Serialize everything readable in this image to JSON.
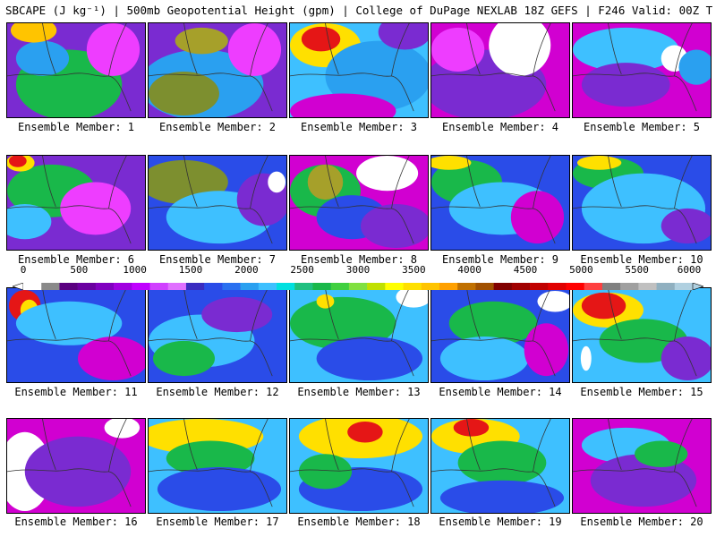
{
  "header": {
    "title": "SBCAPE (J kg⁻¹) | 500mb Geopotential Height (gpm) | College of DuPage NEXLAB 18Z GEFS | F246 Valid: 00Z TUE JUN 17 2025"
  },
  "members": [
    {
      "label": "Ensemble Member: 1",
      "base": "#7a2bd1",
      "blobs": [
        [
          "#19b84a",
          70,
          70,
          60,
          40
        ],
        [
          "#2aa0f0",
          40,
          40,
          30,
          20
        ],
        [
          "#ffc400",
          30,
          8,
          26,
          14
        ],
        [
          "#ee3dff",
          120,
          30,
          30,
          30
        ]
      ]
    },
    {
      "label": "Ensemble Member: 2",
      "base": "#7a2bd1",
      "blobs": [
        [
          "#2aa0f0",
          60,
          70,
          70,
          40
        ],
        [
          "#7d8f2f",
          40,
          80,
          40,
          25
        ],
        [
          "#a6a02a",
          60,
          20,
          30,
          15
        ],
        [
          "#ee3dff",
          120,
          30,
          30,
          30
        ]
      ]
    },
    {
      "label": "Ensemble Member: 3",
      "base": "#3ec0ff",
      "blobs": [
        [
          "#ffe000",
          40,
          25,
          40,
          25
        ],
        [
          "#e51616",
          35,
          18,
          22,
          14
        ],
        [
          "#2aa0f0",
          100,
          60,
          60,
          40
        ],
        [
          "#7a2bd1",
          130,
          10,
          30,
          20
        ],
        [
          "#d100d1",
          60,
          100,
          60,
          20
        ]
      ]
    },
    {
      "label": "Ensemble Member: 4",
      "base": "#d100d1",
      "blobs": [
        [
          "#7a2bd1",
          60,
          70,
          70,
          40
        ],
        [
          "#ffffff",
          100,
          25,
          35,
          35
        ],
        [
          "#ee3dff",
          30,
          30,
          30,
          25
        ]
      ]
    },
    {
      "label": "Ensemble Member: 5",
      "base": "#d100d1",
      "blobs": [
        [
          "#3ec0ff",
          60,
          30,
          60,
          25
        ],
        [
          "#ffffff",
          115,
          40,
          15,
          15
        ],
        [
          "#7a2bd1",
          60,
          70,
          50,
          25
        ],
        [
          "#2aa0f0",
          140,
          50,
          20,
          20
        ]
      ]
    },
    {
      "label": "Ensemble Member: 6",
      "base": "#7a2bd1",
      "blobs": [
        [
          "#19b84a",
          50,
          40,
          50,
          30
        ],
        [
          "#ffe000",
          15,
          8,
          16,
          10
        ],
        [
          "#e51616",
          12,
          6,
          10,
          7
        ],
        [
          "#3ec0ff",
          20,
          75,
          30,
          20
        ],
        [
          "#ee3dff",
          100,
          60,
          40,
          30
        ]
      ]
    },
    {
      "label": "Ensemble Member: 7",
      "base": "#2a4ce8",
      "blobs": [
        [
          "#7d8f2f",
          40,
          30,
          50,
          25
        ],
        [
          "#3ec0ff",
          80,
          70,
          60,
          30
        ],
        [
          "#7a2bd1",
          130,
          50,
          30,
          30
        ],
        [
          "#ffffff",
          145,
          30,
          10,
          12
        ]
      ]
    },
    {
      "label": "Ensemble Member: 8",
      "base": "#d100d1",
      "blobs": [
        [
          "#19b84a",
          40,
          40,
          40,
          30
        ],
        [
          "#a6a02a",
          40,
          30,
          20,
          20
        ],
        [
          "#ffffff",
          110,
          20,
          35,
          20
        ],
        [
          "#2a4ce8",
          70,
          70,
          40,
          25
        ],
        [
          "#7a2bd1",
          120,
          80,
          40,
          25
        ]
      ]
    },
    {
      "label": "Ensemble Member: 9",
      "base": "#2a4ce8",
      "blobs": [
        [
          "#19b84a",
          40,
          30,
          40,
          25
        ],
        [
          "#ffe000",
          20,
          8,
          25,
          8
        ],
        [
          "#3ec0ff",
          80,
          60,
          60,
          30
        ],
        [
          "#d100d1",
          120,
          70,
          30,
          30
        ]
      ]
    },
    {
      "label": "Ensemble Member: 10",
      "base": "#2a4ce8",
      "blobs": [
        [
          "#19b84a",
          40,
          20,
          40,
          18
        ],
        [
          "#ffe000",
          30,
          8,
          25,
          8
        ],
        [
          "#3ec0ff",
          80,
          60,
          70,
          40
        ],
        [
          "#7a2bd1",
          130,
          80,
          30,
          20
        ]
      ]
    },
    {
      "label": "Ensemble Member: 11",
      "base": "#2a4ce8",
      "blobs": [
        [
          "#e51616",
          20,
          20,
          18,
          18
        ],
        [
          "#ffe000",
          25,
          25,
          10,
          12
        ],
        [
          "#3ec0ff",
          70,
          40,
          60,
          25
        ],
        [
          "#d100d1",
          120,
          80,
          40,
          25
        ]
      ]
    },
    {
      "label": "Ensemble Member: 12",
      "base": "#2a4ce8",
      "blobs": [
        [
          "#3ec0ff",
          60,
          60,
          60,
          30
        ],
        [
          "#19b84a",
          40,
          80,
          35,
          20
        ],
        [
          "#7a2bd1",
          100,
          30,
          40,
          20
        ]
      ]
    },
    {
      "label": "Ensemble Member: 13",
      "base": "#3ec0ff",
      "blobs": [
        [
          "#19b84a",
          60,
          40,
          60,
          30
        ],
        [
          "#ffe000",
          40,
          15,
          10,
          8
        ],
        [
          "#2a4ce8",
          90,
          80,
          60,
          25
        ],
        [
          "#ffffff",
          140,
          10,
          20,
          12
        ]
      ]
    },
    {
      "label": "Ensemble Member: 14",
      "base": "#2a4ce8",
      "blobs": [
        [
          "#19b84a",
          70,
          40,
          50,
          25
        ],
        [
          "#3ec0ff",
          60,
          80,
          50,
          25
        ],
        [
          "#d100d1",
          130,
          70,
          25,
          30
        ],
        [
          "#ffffff",
          140,
          15,
          20,
          12
        ]
      ]
    },
    {
      "label": "Ensemble Member: 15",
      "base": "#3ec0ff",
      "blobs": [
        [
          "#ffe000",
          40,
          25,
          40,
          20
        ],
        [
          "#e51616",
          35,
          20,
          25,
          15
        ],
        [
          "#19b84a",
          80,
          60,
          50,
          25
        ],
        [
          "#ffffff",
          15,
          80,
          6,
          14
        ],
        [
          "#7a2bd1",
          130,
          80,
          30,
          25
        ]
      ]
    },
    {
      "label": "Ensemble Member: 16",
      "base": "#d100d1",
      "blobs": [
        [
          "#ffffff",
          20,
          60,
          30,
          45
        ],
        [
          "#7a2bd1",
          80,
          60,
          60,
          40
        ],
        [
          "#ffffff",
          130,
          10,
          20,
          12
        ]
      ]
    },
    {
      "label": "Ensemble Member: 17",
      "base": "#3ec0ff",
      "blobs": [
        [
          "#ffe000",
          60,
          20,
          70,
          20
        ],
        [
          "#19b84a",
          70,
          45,
          50,
          20
        ],
        [
          "#2a4ce8",
          80,
          80,
          70,
          25
        ]
      ]
    },
    {
      "label": "Ensemble Member: 18",
      "base": "#3ec0ff",
      "blobs": [
        [
          "#ffe000",
          80,
          20,
          70,
          25
        ],
        [
          "#e51616",
          85,
          15,
          20,
          12
        ],
        [
          "#2a4ce8",
          80,
          80,
          70,
          25
        ],
        [
          "#19b84a",
          40,
          60,
          30,
          20
        ]
      ]
    },
    {
      "label": "Ensemble Member: 19",
      "base": "#3ec0ff",
      "blobs": [
        [
          "#ffe000",
          50,
          20,
          50,
          20
        ],
        [
          "#e51616",
          45,
          10,
          20,
          10
        ],
        [
          "#19b84a",
          80,
          50,
          50,
          25
        ],
        [
          "#2a4ce8",
          80,
          90,
          70,
          20
        ]
      ]
    },
    {
      "label": "Ensemble Member: 20",
      "base": "#d100d1",
      "blobs": [
        [
          "#3ec0ff",
          60,
          30,
          50,
          20
        ],
        [
          "#7a2bd1",
          80,
          70,
          60,
          30
        ],
        [
          "#19b84a",
          100,
          40,
          30,
          15
        ]
      ]
    }
  ],
  "colorbar": {
    "tick_labels": [
      "0",
      "500",
      "1000",
      "1500",
      "2000",
      "2500",
      "3000",
      "3500",
      "4000",
      "4500",
      "5000",
      "5500",
      "6000"
    ],
    "colors": [
      "#ffffff",
      "#8a8a8a",
      "#5a0080",
      "#6a00a0",
      "#8000c0",
      "#a000e0",
      "#c000ff",
      "#d040ff",
      "#e070ff",
      "#3a2cc0",
      "#2a4ce8",
      "#2a70f0",
      "#2aa0f0",
      "#3ec0ff",
      "#00e0e0",
      "#20c080",
      "#19b84a",
      "#40d040",
      "#80e040",
      "#c0e000",
      "#ffff00",
      "#ffe000",
      "#ffc400",
      "#ffa000",
      "#c07000",
      "#a05000",
      "#800000",
      "#a00000",
      "#c00000",
      "#e00000",
      "#ff0000",
      "#ff4040",
      "#808080",
      "#a0a0a0",
      "#c0c0c0",
      "#90b0c0",
      "#b0d0e0"
    ]
  }
}
